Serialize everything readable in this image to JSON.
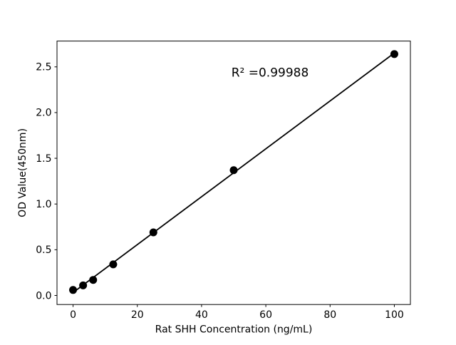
{
  "figure": {
    "background": "#ffffff",
    "foreground": "#000000"
  },
  "chart_data": {
    "type": "scatter",
    "title": "",
    "xlabel": "Rat SHH Concentration (ng/mL)",
    "ylabel": "OD Value(450nm)",
    "annotation": "R² =0.99988",
    "r_squared": 0.99988,
    "x": [
      0,
      3.125,
      6.25,
      12.5,
      25,
      50,
      100
    ],
    "y": [
      0.06,
      0.11,
      0.17,
      0.34,
      0.69,
      1.37,
      2.64
    ],
    "fit_line": {
      "x1": 0,
      "y1": 0.032,
      "x2": 100,
      "y2": 2.651,
      "slope": 0.02619,
      "intercept": 0.032
    },
    "xlim": [
      -5,
      105
    ],
    "ylim": [
      -0.099,
      2.782
    ],
    "xticks": [
      0,
      20,
      40,
      60,
      80,
      100
    ],
    "xtick_labels": [
      "0",
      "20",
      "40",
      "60",
      "80",
      "100"
    ],
    "yticks": [
      0.0,
      0.5,
      1.0,
      1.5,
      2.0,
      2.5
    ],
    "ytick_labels": [
      "0.0",
      "0.5",
      "1.0",
      "1.5",
      "2.0",
      "2.5"
    ],
    "grid": false,
    "legend": null,
    "marker_color": "#000000",
    "line_color": "#000000",
    "marker_radius_px": 5.5
  }
}
